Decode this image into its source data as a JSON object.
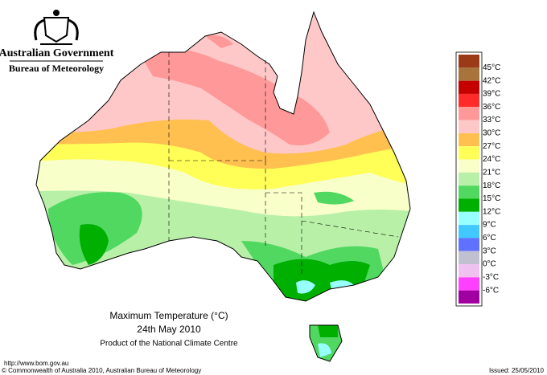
{
  "header": {
    "government": "Australian Government",
    "bureau": "Bureau of Meteorology"
  },
  "map": {
    "title": "Maximum Temperature (°C)",
    "date": "24th May 2010",
    "credit": "Product of the National Climate Centre"
  },
  "legend": {
    "labels": [
      "45°C",
      "42°C",
      "39°C",
      "36°C",
      "33°C",
      "30°C",
      "27°C",
      "24°C",
      "21°C",
      "18°C",
      "15°C",
      "12°C",
      "9°C",
      "6°C",
      "3°C",
      "0°C",
      "-3°C",
      "-6°C"
    ],
    "colors": [
      "#9a3a16",
      "#a8743c",
      "#c40000",
      "#ff2a2a",
      "#ff9898",
      "#ffc8c8",
      "#ffc050",
      "#ffff58",
      "#f8ffc8",
      "#b8f0a8",
      "#50d860",
      "#00b000",
      "#98ffff",
      "#40c8ff",
      "#6070ff",
      "#c0c0d0",
      "#f0c0f0",
      "#ff40ff",
      "#a000a0"
    ]
  },
  "footer": {
    "url": "http://www.bom.gov.au",
    "copyright": "© Commonwealth of Australia 2010, Australian Bureau of Meteorology",
    "issued": "Issued: 25/05/2010"
  }
}
